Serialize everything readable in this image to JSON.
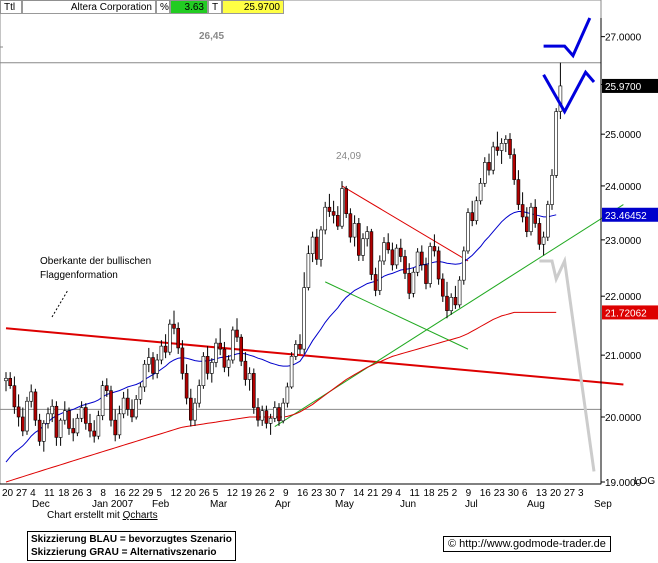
{
  "header": {
    "ttl": "Ttl",
    "name": "Altera Corporation",
    "pct_label": "%",
    "pct_value": "3.63",
    "t_label": "T",
    "price": "25.9700",
    "colors": {
      "pct": "#22cc22",
      "price": "#ffff44"
    }
  },
  "annotations": {
    "high_label": "26,45",
    "swing_label": "24,09",
    "flag_note_line1": "Oberkante der bullischen",
    "flag_note_line2": "Flaggenformation"
  },
  "footer": {
    "credit_prefix": "Chart erstellt mit ",
    "credit_link": "Qcharts",
    "legend_blue": "Skizzierung BLAU = bevorzugtes Szenario",
    "legend_gray": "Skizzierung GRAU = Alternativszenario",
    "url": "http://www.godmode-trader.de",
    "copyright_symbol": "©"
  },
  "chart_data": {
    "type": "candlestick",
    "title": "",
    "yscale": "log",
    "ylim": [
      19.0,
      27.4
    ],
    "y_ticks": [
      "27.0000",
      "26.0000",
      "25.0000",
      "24.0000",
      "23.0000",
      "22.0000",
      "21.0000",
      "20.0000",
      "19.0000"
    ],
    "y_tick_values": [
      27,
      26,
      25,
      24,
      23,
      22,
      21,
      20,
      19
    ],
    "y_axis_suffix": "LOG",
    "x_day_labels": [
      "20",
      "27",
      "4",
      "11",
      "18",
      "26",
      "3",
      "8",
      "16",
      "22",
      "29",
      "5",
      "12",
      "20",
      "26",
      "5",
      "12",
      "19",
      "26",
      "2",
      "9",
      "16",
      "23",
      "30",
      "7",
      "14",
      "21",
      "29",
      "4",
      "11",
      "18",
      "25",
      "2",
      "9",
      "16",
      "23",
      "30",
      "6",
      "13",
      "20",
      "27",
      "3"
    ],
    "x_month_labels": [
      "Dec",
      "Jan 2007",
      "Feb",
      "Mar",
      "Apr",
      "May",
      "Jun",
      "Jul",
      "Aug",
      "Sep"
    ],
    "price_tags": [
      {
        "label": "25.9700",
        "value": 25.97,
        "bg": "#000000",
        "fg": "#ffffff"
      },
      {
        "label": "23.46452",
        "value": 23.46,
        "bg": "#0000cc",
        "fg": "#ffffff"
      },
      {
        "label": "21.72062",
        "value": 21.72,
        "bg": "#dd0000",
        "fg": "#ffffff"
      }
    ],
    "candles": [
      [
        20.58,
        20.72,
        20.41,
        20.62
      ],
      [
        20.62,
        20.72,
        20.45,
        20.5
      ],
      [
        20.5,
        20.65,
        20.05,
        20.16
      ],
      [
        20.16,
        20.36,
        19.85,
        20.0
      ],
      [
        20.0,
        20.15,
        19.7,
        19.78
      ],
      [
        19.78,
        20.32,
        19.72,
        20.25
      ],
      [
        20.25,
        20.52,
        20.15,
        20.4
      ],
      [
        20.4,
        20.45,
        19.86,
        19.95
      ],
      [
        19.95,
        20.05,
        19.55,
        19.62
      ],
      [
        19.62,
        19.95,
        19.46,
        19.9
      ],
      [
        19.9,
        20.15,
        19.82,
        20.05
      ],
      [
        20.05,
        20.28,
        19.92,
        20.17
      ],
      [
        20.17,
        20.25,
        19.55,
        19.68
      ],
      [
        19.68,
        19.98,
        19.55,
        19.95
      ],
      [
        19.95,
        20.25,
        19.88,
        20.1
      ],
      [
        20.1,
        20.15,
        19.72,
        19.82
      ],
      [
        19.82,
        19.98,
        19.62,
        19.75
      ],
      [
        19.75,
        20.05,
        19.7,
        19.98
      ],
      [
        19.98,
        20.25,
        19.92,
        20.15
      ],
      [
        20.15,
        20.22,
        19.8,
        19.9
      ],
      [
        19.9,
        20.05,
        19.68,
        19.78
      ],
      [
        19.78,
        19.95,
        19.6,
        19.7
      ],
      [
        19.7,
        20.1,
        19.65,
        20.02
      ],
      [
        20.02,
        20.58,
        19.95,
        20.5
      ],
      [
        20.5,
        20.62,
        20.32,
        20.42
      ],
      [
        20.42,
        20.5,
        19.85,
        19.95
      ],
      [
        19.95,
        20.12,
        19.62,
        19.72
      ],
      [
        19.72,
        20.18,
        19.66,
        20.05
      ],
      [
        20.05,
        20.4,
        19.98,
        20.3
      ],
      [
        20.3,
        20.45,
        20.02,
        20.12
      ],
      [
        20.12,
        20.28,
        19.92,
        20.0
      ],
      [
        20.0,
        20.35,
        19.96,
        20.28
      ],
      [
        20.28,
        20.55,
        20.2,
        20.48
      ],
      [
        20.48,
        20.92,
        20.4,
        20.85
      ],
      [
        20.85,
        21.12,
        20.72,
        20.96
      ],
      [
        20.96,
        21.05,
        20.6,
        20.7
      ],
      [
        20.7,
        21.02,
        20.62,
        20.92
      ],
      [
        20.92,
        21.25,
        20.85,
        21.15
      ],
      [
        21.15,
        21.35,
        20.95,
        21.05
      ],
      [
        21.05,
        21.6,
        21.0,
        21.52
      ],
      [
        21.52,
        21.75,
        21.35,
        21.45
      ],
      [
        21.45,
        21.55,
        21.02,
        21.12
      ],
      [
        21.12,
        21.25,
        20.6,
        20.7
      ],
      [
        20.7,
        20.85,
        20.2,
        20.3
      ],
      [
        20.3,
        20.45,
        19.85,
        19.95
      ],
      [
        19.95,
        20.3,
        19.86,
        20.22
      ],
      [
        20.22,
        20.6,
        20.15,
        20.5
      ],
      [
        20.5,
        21.05,
        20.45,
        20.98
      ],
      [
        20.98,
        21.15,
        20.6,
        20.7
      ],
      [
        20.7,
        20.95,
        20.55,
        20.88
      ],
      [
        20.88,
        21.28,
        20.8,
        21.2
      ],
      [
        21.2,
        21.45,
        21.0,
        21.1
      ],
      [
        21.1,
        21.22,
        20.72,
        20.8
      ],
      [
        20.8,
        21.0,
        20.65,
        20.92
      ],
      [
        20.92,
        21.48,
        20.86,
        21.42
      ],
      [
        21.42,
        21.62,
        21.22,
        21.3
      ],
      [
        21.3,
        21.35,
        20.82,
        20.9
      ],
      [
        20.9,
        21.05,
        20.5,
        20.6
      ],
      [
        20.6,
        20.8,
        20.42,
        20.7
      ],
      [
        20.7,
        20.78,
        20.05,
        20.15
      ],
      [
        20.15,
        20.3,
        19.85,
        19.95
      ],
      [
        19.95,
        20.18,
        19.86,
        20.1
      ],
      [
        20.1,
        20.18,
        19.82,
        19.9
      ],
      [
        19.9,
        20.05,
        19.72,
        19.98
      ],
      [
        19.98,
        20.25,
        19.92,
        20.15
      ],
      [
        20.15,
        20.22,
        19.86,
        19.94
      ],
      [
        19.94,
        20.3,
        19.9,
        20.22
      ],
      [
        20.22,
        20.55,
        20.15,
        20.48
      ],
      [
        20.48,
        21.05,
        20.45,
        20.98
      ],
      [
        20.98,
        21.25,
        20.92,
        21.18
      ],
      [
        21.18,
        21.35,
        21.02,
        21.1
      ],
      [
        21.1,
        22.42,
        21.02,
        22.15
      ],
      [
        22.15,
        22.9,
        22.1,
        22.75
      ],
      [
        22.75,
        23.15,
        22.6,
        23.05
      ],
      [
        23.05,
        23.2,
        22.55,
        22.65
      ],
      [
        22.65,
        23.25,
        22.52,
        23.18
      ],
      [
        23.18,
        23.7,
        23.1,
        23.6
      ],
      [
        23.6,
        23.85,
        23.42,
        23.52
      ],
      [
        23.52,
        23.72,
        23.3,
        23.45
      ],
      [
        23.45,
        23.62,
        23.18,
        23.25
      ],
      [
        23.25,
        24.09,
        23.2,
        23.95
      ],
      [
        23.95,
        24.0,
        23.4,
        23.48
      ],
      [
        23.48,
        23.58,
        22.95,
        23.05
      ],
      [
        23.05,
        23.45,
        22.88,
        23.3
      ],
      [
        23.3,
        23.4,
        22.62,
        22.72
      ],
      [
        22.72,
        23.12,
        22.62,
        23.02
      ],
      [
        23.02,
        23.25,
        22.88,
        23.15
      ],
      [
        23.15,
        23.2,
        22.28,
        22.38
      ],
      [
        22.38,
        22.5,
        22.0,
        22.1
      ],
      [
        22.1,
        22.72,
        22.02,
        22.62
      ],
      [
        22.62,
        23.05,
        22.55,
        22.95
      ],
      [
        22.95,
        23.12,
        22.75,
        22.82
      ],
      [
        22.82,
        22.95,
        22.45,
        22.55
      ],
      [
        22.55,
        22.92,
        22.48,
        22.85
      ],
      [
        22.85,
        23.02,
        22.6,
        22.7
      ],
      [
        22.7,
        22.82,
        22.3,
        22.4
      ],
      [
        22.4,
        22.58,
        21.95,
        22.05
      ],
      [
        22.05,
        22.5,
        21.98,
        22.42
      ],
      [
        22.42,
        22.85,
        22.35,
        22.78
      ],
      [
        22.78,
        22.9,
        22.45,
        22.55
      ],
      [
        22.55,
        22.68,
        22.12,
        22.22
      ],
      [
        22.22,
        22.95,
        22.15,
        22.88
      ],
      [
        22.88,
        23.1,
        22.7,
        22.8
      ],
      [
        22.8,
        22.88,
        22.2,
        22.3
      ],
      [
        22.3,
        22.4,
        21.9,
        22.0
      ],
      [
        22.0,
        22.25,
        21.62,
        21.75
      ],
      [
        21.75,
        22.05,
        21.68,
        21.98
      ],
      [
        21.98,
        22.18,
        21.78,
        21.85
      ],
      [
        21.85,
        22.35,
        21.8,
        22.28
      ],
      [
        22.28,
        22.88,
        22.2,
        22.8
      ],
      [
        22.8,
        23.58,
        22.75,
        23.5
      ],
      [
        23.5,
        23.72,
        23.25,
        23.35
      ],
      [
        23.35,
        23.8,
        23.28,
        23.72
      ],
      [
        23.72,
        24.15,
        23.65,
        24.05
      ],
      [
        24.05,
        24.55,
        23.98,
        24.45
      ],
      [
        24.45,
        24.62,
        24.2,
        24.3
      ],
      [
        24.3,
        24.85,
        24.22,
        24.75
      ],
      [
        24.75,
        25.05,
        24.58,
        24.68
      ],
      [
        24.68,
        24.92,
        24.42,
        24.82
      ],
      [
        24.82,
        24.98,
        24.65,
        24.9
      ],
      [
        24.9,
        25.02,
        24.52,
        24.6
      ],
      [
        24.6,
        24.72,
        24.02,
        24.12
      ],
      [
        24.12,
        24.3,
        23.55,
        23.65
      ],
      [
        23.65,
        23.88,
        23.32,
        23.42
      ],
      [
        23.42,
        23.6,
        23.05,
        23.15
      ],
      [
        23.15,
        23.68,
        23.08,
        23.6
      ],
      [
        23.6,
        23.75,
        23.22,
        23.3
      ],
      [
        23.3,
        23.4,
        22.82,
        22.92
      ],
      [
        22.92,
        23.15,
        22.72,
        23.05
      ],
      [
        23.05,
        23.72,
        22.98,
        23.65
      ],
      [
        23.65,
        24.32,
        23.55,
        24.2
      ],
      [
        24.2,
        25.52,
        24.15,
        25.45
      ],
      [
        25.45,
        26.45,
        25.3,
        25.97
      ]
    ],
    "sma_blue": [
      19.3,
      19.38,
      19.45,
      19.5,
      19.55,
      19.62,
      19.7,
      19.76,
      19.8,
      19.86,
      19.92,
      19.98,
      20.02,
      20.05,
      20.08,
      20.1,
      20.12,
      20.15,
      20.18,
      20.2,
      20.22,
      20.24,
      20.27,
      20.32,
      20.36,
      20.38,
      20.4,
      20.42,
      20.45,
      20.48,
      20.5,
      20.52,
      20.55,
      20.6,
      20.64,
      20.68,
      20.72,
      20.77,
      20.82,
      20.88,
      20.92,
      20.95,
      20.96,
      20.95,
      20.93,
      20.91,
      20.9,
      20.9,
      20.91,
      20.92,
      20.94,
      20.96,
      20.97,
      20.98,
      21.0,
      21.02,
      21.03,
      21.02,
      21.0,
      20.98,
      20.95,
      20.93,
      20.9,
      20.87,
      20.85,
      20.83,
      20.82,
      20.82,
      20.83,
      20.86,
      20.9,
      21.0,
      21.12,
      21.24,
      21.34,
      21.44,
      21.55,
      21.64,
      21.72,
      21.8,
      21.9,
      21.98,
      22.04,
      22.1,
      22.14,
      22.18,
      22.22,
      22.24,
      22.26,
      22.3,
      22.35,
      22.38,
      22.4,
      22.43,
      22.46,
      22.47,
      22.48,
      22.5,
      22.53,
      22.55,
      22.56,
      22.58,
      22.6,
      22.61,
      22.6,
      22.58,
      22.57,
      22.56,
      22.57,
      22.6,
      22.66,
      22.72,
      22.8,
      22.88,
      22.98,
      23.06,
      23.15,
      23.24,
      23.33,
      23.4,
      23.46,
      23.5,
      23.52,
      23.52,
      23.5,
      23.48,
      23.46,
      23.44,
      23.42,
      23.42,
      23.44,
      23.46
    ],
    "sma_red": [
      19.0,
      19.02,
      19.04,
      19.06,
      19.08,
      19.1,
      19.12,
      19.14,
      19.16,
      19.18,
      19.2,
      19.22,
      19.24,
      19.26,
      19.28,
      19.3,
      19.32,
      19.34,
      19.36,
      19.38,
      19.4,
      19.42,
      19.44,
      19.46,
      19.48,
      19.5,
      19.52,
      19.54,
      19.56,
      19.58,
      19.6,
      19.62,
      19.64,
      19.66,
      19.68,
      19.7,
      19.72,
      19.74,
      19.76,
      19.78,
      19.8,
      19.82,
      19.84,
      19.85,
      19.86,
      19.87,
      19.88,
      19.89,
      19.9,
      19.91,
      19.92,
      19.93,
      19.94,
      19.95,
      19.96,
      19.97,
      19.98,
      19.99,
      20.0,
      20.0,
      20.0,
      20.0,
      20.0,
      20.0,
      20.0,
      20.0,
      20.0,
      20.01,
      20.03,
      20.05,
      20.08,
      20.12,
      20.16,
      20.2,
      20.25,
      20.3,
      20.35,
      20.4,
      20.45,
      20.5,
      20.55,
      20.6,
      20.64,
      20.68,
      20.72,
      20.76,
      20.8,
      20.83,
      20.86,
      20.89,
      20.92,
      20.95,
      20.98,
      21.0,
      21.02,
      21.04,
      21.06,
      21.08,
      21.1,
      21.12,
      21.14,
      21.16,
      21.18,
      21.2,
      21.22,
      21.24,
      21.26,
      21.28,
      21.3,
      21.33,
      21.36,
      21.4,
      21.44,
      21.48,
      21.52,
      21.56,
      21.6,
      21.63,
      21.66,
      21.68,
      21.7,
      21.72,
      21.72,
      21.72,
      21.72,
      21.72,
      21.72,
      21.72,
      21.72,
      21.72,
      21.72,
      21.72
    ],
    "horizontal_lines": [
      26.45,
      20.12
    ],
    "trendlines": [
      {
        "color": "#dd0000",
        "from": [
          0,
          21.45
        ],
        "to": [
          147,
          20.52
        ]
      },
      {
        "color": "#dd0000",
        "from": [
          80,
          24.0
        ],
        "to": [
          110,
          22.62
        ]
      },
      {
        "color": "#22aa22",
        "from": [
          64,
          19.85
        ],
        "to": [
          147,
          23.65
        ]
      },
      {
        "color": "#22aa22",
        "from": [
          76,
          22.25
        ],
        "to": [
          110,
          21.1
        ]
      }
    ],
    "scenarios": [
      {
        "name": "blue-preferred",
        "color": "#0000dd",
        "points": [
          [
            128,
            26.8
          ],
          [
            133,
            26.8
          ],
          [
            135,
            26.6
          ],
          [
            139,
            27.4
          ]
        ]
      },
      {
        "name": "blue-preferred-2",
        "color": "#0000dd",
        "points": [
          [
            128,
            26.2
          ],
          [
            133,
            25.45
          ],
          [
            138,
            26.25
          ],
          [
            140,
            26.05
          ]
        ]
      },
      {
        "name": "gray-alternative",
        "color": "#cccccc",
        "points": [
          [
            127,
            22.62
          ],
          [
            130,
            22.62
          ],
          [
            131,
            22.3
          ],
          [
            133,
            22.62
          ],
          [
            140,
            19.16
          ]
        ]
      }
    ]
  }
}
